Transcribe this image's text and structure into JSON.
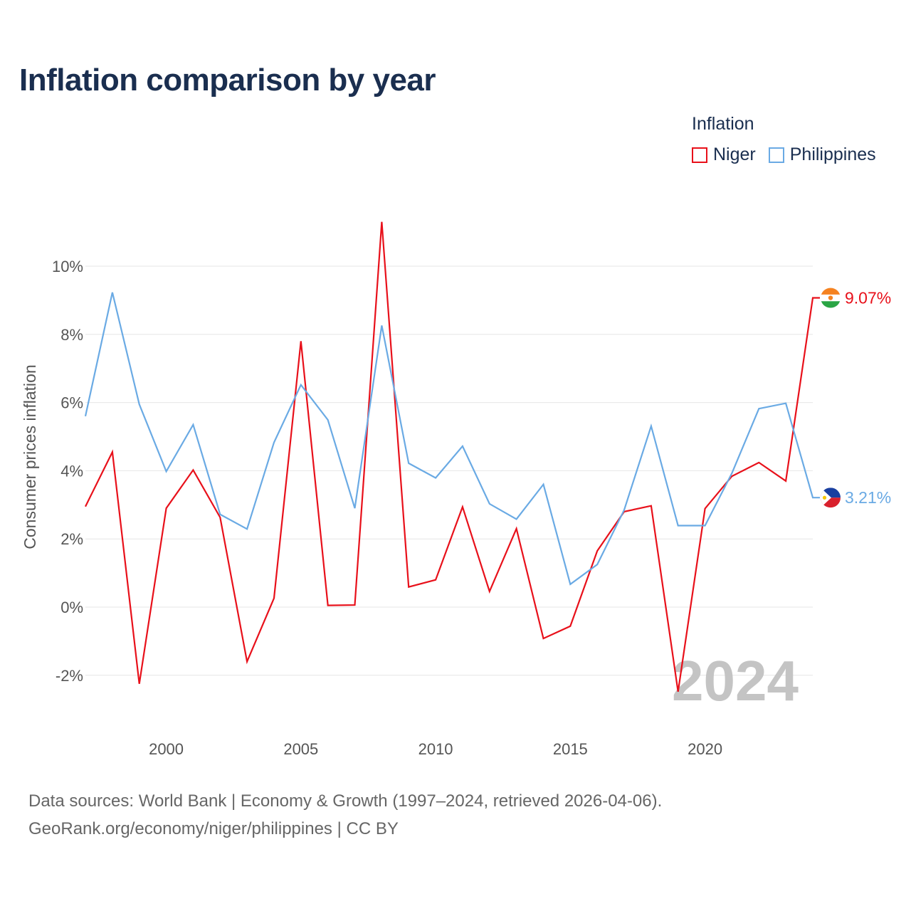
{
  "colors": {
    "niger": "#e8101a",
    "philippines": "#6aaae4",
    "title": "#1a2e4f"
  },
  "chart_data": {
    "type": "line",
    "title": "Inflation comparison by year",
    "ylabel": "Consumer prices inflation",
    "xlabel": "",
    "legend_title": "Inflation",
    "legend_position": "top-right",
    "x": [
      1997,
      1998,
      1999,
      2000,
      2001,
      2002,
      2003,
      2004,
      2005,
      2006,
      2007,
      2008,
      2009,
      2010,
      2011,
      2012,
      2013,
      2014,
      2015,
      2016,
      2017,
      2018,
      2019,
      2020,
      2021,
      2022,
      2023,
      2024
    ],
    "series": [
      {
        "name": "Niger",
        "color": "#e8101a",
        "flag": "niger-flag-icon",
        "end_label": "9.07%",
        "values": [
          2.95,
          4.55,
          -2.25,
          2.9,
          4.02,
          2.63,
          -1.6,
          0.26,
          7.8,
          0.05,
          0.06,
          11.3,
          0.59,
          0.8,
          2.94,
          0.46,
          2.3,
          -0.92,
          -0.56,
          1.65,
          2.8,
          2.97,
          -2.48,
          2.89,
          3.84,
          4.24,
          3.7,
          9.07
        ]
      },
      {
        "name": "Philippines",
        "color": "#6aaae4",
        "flag": "philippines-flag-icon",
        "end_label": "3.21%",
        "values": [
          5.6,
          9.23,
          5.95,
          3.98,
          5.35,
          2.72,
          2.29,
          4.83,
          6.52,
          5.49,
          2.9,
          8.26,
          4.22,
          3.79,
          4.72,
          3.03,
          2.58,
          3.6,
          0.67,
          1.25,
          2.85,
          5.31,
          2.39,
          2.39,
          3.93,
          5.82,
          5.98,
          3.21
        ]
      }
    ],
    "xlim": [
      1997,
      2024
    ],
    "ylim": [
      -2.8,
      11.5
    ],
    "y_ticks": [
      -2,
      0,
      2,
      4,
      6,
      8,
      10
    ],
    "y_tick_labels": [
      "-2%",
      "0%",
      "2%",
      "4%",
      "6%",
      "8%",
      "10%"
    ],
    "x_ticks": [
      2000,
      2005,
      2010,
      2015,
      2020
    ],
    "x_tick_labels": [
      "2000",
      "2005",
      "2010",
      "2015",
      "2020"
    ],
    "grid": true,
    "year_watermark": "2024"
  },
  "footer": {
    "line1": "Data sources: World Bank | Economy & Growth (1997–2024, retrieved 2026-04-06).",
    "line2": "GeoRank.org/economy/niger/philippines | CC BY"
  }
}
